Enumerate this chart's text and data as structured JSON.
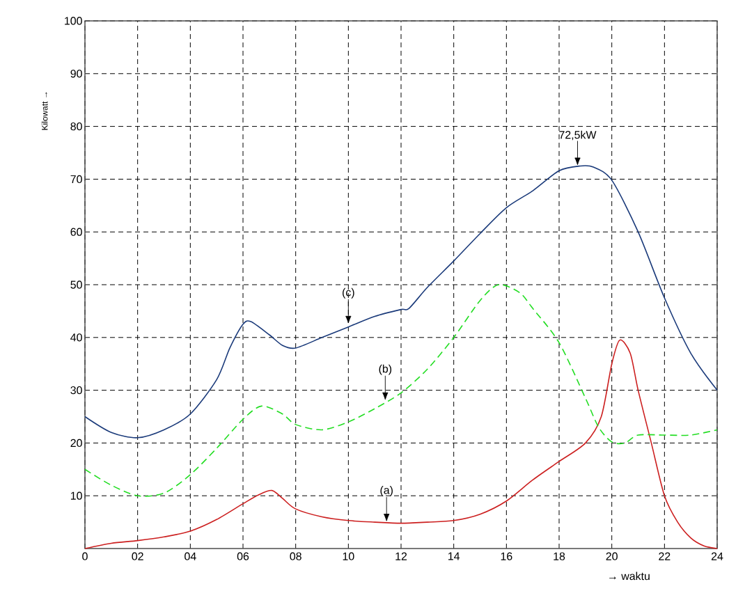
{
  "chart_data": {
    "type": "line",
    "xlabel": "→  waktu",
    "ylabel": "Kilowatt →",
    "xlim": [
      0,
      24
    ],
    "ylim": [
      0,
      100
    ],
    "xticks": [
      {
        "value": 0,
        "label": "0"
      },
      {
        "value": 2,
        "label": "02"
      },
      {
        "value": 4,
        "label": "04"
      },
      {
        "value": 6,
        "label": "06"
      },
      {
        "value": 8,
        "label": "08"
      },
      10,
      12,
      14,
      16,
      18,
      20,
      22,
      24
    ],
    "yticks": [
      10,
      20,
      30,
      40,
      50,
      60,
      70,
      80,
      90,
      100
    ],
    "grid": true,
    "marker": "none",
    "series": [
      {
        "color": "#cc1f1f",
        "line_style": "solid",
        "x": [
          0,
          1,
          2,
          3,
          4,
          5,
          6,
          6.6,
          7.1,
          7.5,
          8,
          9,
          10,
          11,
          12,
          13,
          14,
          15,
          16,
          17,
          18,
          19,
          19.6,
          20,
          20.3,
          20.7,
          21,
          21.5,
          22,
          22.5,
          23,
          23.5,
          24
        ],
        "values": [
          0,
          1,
          1.5,
          2.2,
          3.3,
          5.5,
          8.5,
          10.2,
          11,
          9.5,
          7.5,
          6,
          5.3,
          5,
          4.8,
          5,
          5.3,
          6.5,
          9,
          13,
          16.5,
          20,
          25,
          35,
          39.5,
          37,
          30,
          20,
          10,
          5,
          2,
          0.5,
          0
        ]
      },
      {
        "color": "#22dd22",
        "line_style": "dashed",
        "x": [
          0,
          1,
          2,
          3,
          4,
          5,
          6,
          6.7,
          7.5,
          8,
          9,
          10,
          11,
          12,
          13,
          14,
          15,
          15.7,
          16.5,
          17,
          18,
          19,
          19.5,
          20,
          20.5,
          21,
          22,
          23,
          24
        ],
        "values": [
          15,
          12,
          10,
          10.5,
          14,
          19,
          24.5,
          27,
          25.5,
          23.5,
          22.5,
          24,
          26.5,
          29.5,
          34,
          40,
          47,
          50,
          48.5,
          45.5,
          39,
          28.5,
          23,
          20.2,
          20,
          21.5,
          21.5,
          21.5,
          22.5
        ]
      },
      {
        "color": "#1a3a7a",
        "line_style": "solid",
        "x": [
          0,
          1,
          2,
          3,
          4,
          5,
          5.5,
          6,
          6.3,
          7,
          7.5,
          8,
          9,
          10,
          11,
          12,
          12.3,
          13,
          14,
          15,
          16,
          17,
          18,
          18.8,
          19.3,
          20,
          21,
          22,
          23,
          24
        ],
        "values": [
          25,
          22,
          21,
          22.5,
          25.5,
          32,
          38,
          42.5,
          43,
          40.5,
          38.5,
          38,
          40,
          42,
          44,
          45.3,
          45.5,
          49.5,
          54.5,
          59.7,
          64.6,
          67.8,
          71.6,
          72.5,
          72.3,
          69.8,
          60,
          47.5,
          37,
          30
        ]
      }
    ],
    "annotations": [
      {
        "text": "(a)",
        "x": 11.45,
        "y": 5
      },
      {
        "text": "(b)",
        "x": 11.4,
        "y": 28
      },
      {
        "text": "(c)",
        "x": 10,
        "y": 42.5
      },
      {
        "text": "72,5kW",
        "x": 18.7,
        "y": 72.5
      }
    ]
  }
}
